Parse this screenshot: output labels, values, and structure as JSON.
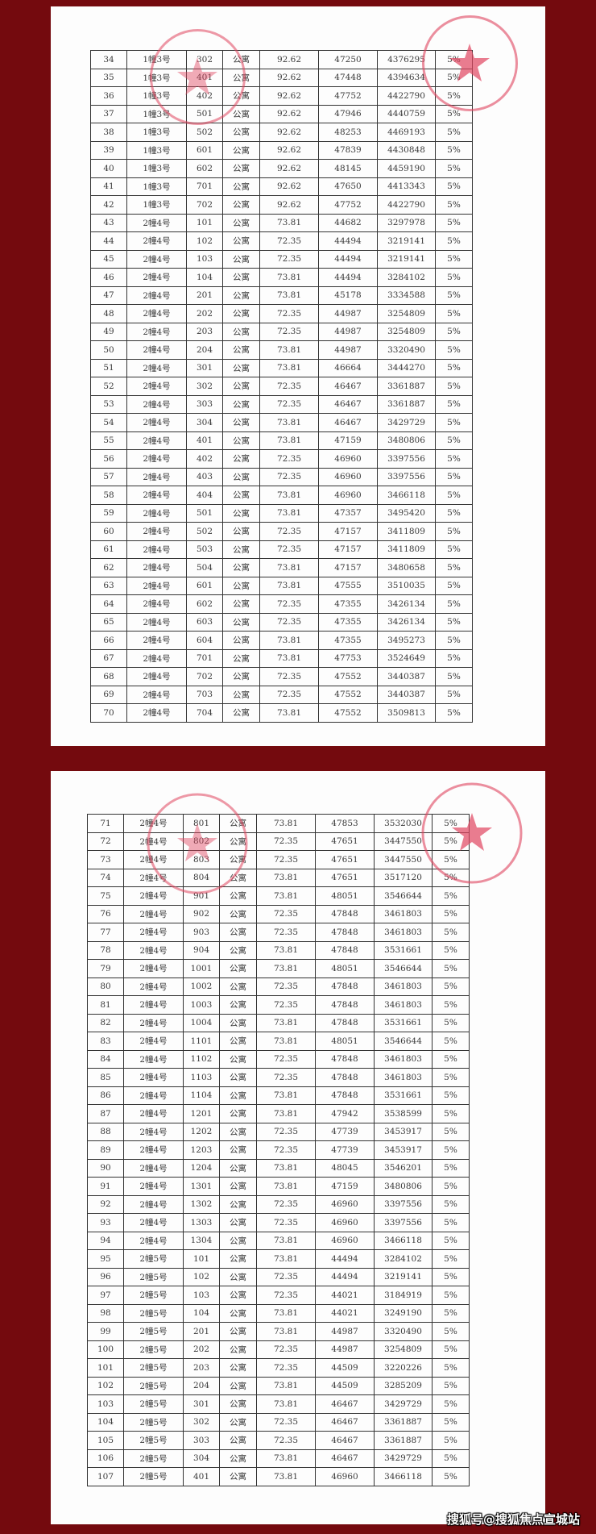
{
  "colors": {
    "background": "#740a0e",
    "stamp": "#e0455f",
    "paper": "#fdfdfd"
  },
  "watermark": "搜狐号@搜狐焦点宣城站",
  "pages": [
    {
      "rows": [
        [
          "34",
          "1幢3号",
          "302",
          "公寓",
          "92.62",
          "47250",
          "4376295",
          "5%"
        ],
        [
          "35",
          "1幢3号",
          "401",
          "公寓",
          "92.62",
          "47448",
          "4394634",
          "5%"
        ],
        [
          "36",
          "1幢3号",
          "402",
          "公寓",
          "92.62",
          "47752",
          "4422790",
          "5%"
        ],
        [
          "37",
          "1幢3号",
          "501",
          "公寓",
          "92.62",
          "47946",
          "4440759",
          "5%"
        ],
        [
          "38",
          "1幢3号",
          "502",
          "公寓",
          "92.62",
          "48253",
          "4469193",
          "5%"
        ],
        [
          "39",
          "1幢3号",
          "601",
          "公寓",
          "92.62",
          "47839",
          "4430848",
          "5%"
        ],
        [
          "40",
          "1幢3号",
          "602",
          "公寓",
          "92.62",
          "48145",
          "4459190",
          "5%"
        ],
        [
          "41",
          "1幢3号",
          "701",
          "公寓",
          "92.62",
          "47650",
          "4413343",
          "5%"
        ],
        [
          "42",
          "1幢3号",
          "702",
          "公寓",
          "92.62",
          "47752",
          "4422790",
          "5%"
        ],
        [
          "43",
          "2幢4号",
          "101",
          "公寓",
          "73.81",
          "44682",
          "3297978",
          "5%"
        ],
        [
          "44",
          "2幢4号",
          "102",
          "公寓",
          "72.35",
          "44494",
          "3219141",
          "5%"
        ],
        [
          "45",
          "2幢4号",
          "103",
          "公寓",
          "72.35",
          "44494",
          "3219141",
          "5%"
        ],
        [
          "46",
          "2幢4号",
          "104",
          "公寓",
          "73.81",
          "44494",
          "3284102",
          "5%"
        ],
        [
          "47",
          "2幢4号",
          "201",
          "公寓",
          "73.81",
          "45178",
          "3334588",
          "5%"
        ],
        [
          "48",
          "2幢4号",
          "202",
          "公寓",
          "72.35",
          "44987",
          "3254809",
          "5%"
        ],
        [
          "49",
          "2幢4号",
          "203",
          "公寓",
          "72.35",
          "44987",
          "3254809",
          "5%"
        ],
        [
          "50",
          "2幢4号",
          "204",
          "公寓",
          "73.81",
          "44987",
          "3320490",
          "5%"
        ],
        [
          "51",
          "2幢4号",
          "301",
          "公寓",
          "73.81",
          "46664",
          "3444270",
          "5%"
        ],
        [
          "52",
          "2幢4号",
          "302",
          "公寓",
          "72.35",
          "46467",
          "3361887",
          "5%"
        ],
        [
          "53",
          "2幢4号",
          "303",
          "公寓",
          "72.35",
          "46467",
          "3361887",
          "5%"
        ],
        [
          "54",
          "2幢4号",
          "304",
          "公寓",
          "73.81",
          "46467",
          "3429729",
          "5%"
        ],
        [
          "55",
          "2幢4号",
          "401",
          "公寓",
          "73.81",
          "47159",
          "3480806",
          "5%"
        ],
        [
          "56",
          "2幢4号",
          "402",
          "公寓",
          "72.35",
          "46960",
          "3397556",
          "5%"
        ],
        [
          "57",
          "2幢4号",
          "403",
          "公寓",
          "72.35",
          "46960",
          "3397556",
          "5%"
        ],
        [
          "58",
          "2幢4号",
          "404",
          "公寓",
          "73.81",
          "46960",
          "3466118",
          "5%"
        ],
        [
          "59",
          "2幢4号",
          "501",
          "公寓",
          "73.81",
          "47357",
          "3495420",
          "5%"
        ],
        [
          "60",
          "2幢4号",
          "502",
          "公寓",
          "72.35",
          "47157",
          "3411809",
          "5%"
        ],
        [
          "61",
          "2幢4号",
          "503",
          "公寓",
          "72.35",
          "47157",
          "3411809",
          "5%"
        ],
        [
          "62",
          "2幢4号",
          "504",
          "公寓",
          "73.81",
          "47157",
          "3480658",
          "5%"
        ],
        [
          "63",
          "2幢4号",
          "601",
          "公寓",
          "73.81",
          "47555",
          "3510035",
          "5%"
        ],
        [
          "64",
          "2幢4号",
          "602",
          "公寓",
          "72.35",
          "47355",
          "3426134",
          "5%"
        ],
        [
          "65",
          "2幢4号",
          "603",
          "公寓",
          "72.35",
          "47355",
          "3426134",
          "5%"
        ],
        [
          "66",
          "2幢4号",
          "604",
          "公寓",
          "73.81",
          "47355",
          "3495273",
          "5%"
        ],
        [
          "67",
          "2幢4号",
          "701",
          "公寓",
          "73.81",
          "47753",
          "3524649",
          "5%"
        ],
        [
          "68",
          "2幢4号",
          "702",
          "公寓",
          "72.35",
          "47552",
          "3440387",
          "5%"
        ],
        [
          "69",
          "2幢4号",
          "703",
          "公寓",
          "72.35",
          "47552",
          "3440387",
          "5%"
        ],
        [
          "70",
          "2幢4号",
          "704",
          "公寓",
          "73.81",
          "47552",
          "3509813",
          "5%"
        ]
      ]
    },
    {
      "rows": [
        [
          "71",
          "2幢4号",
          "801",
          "公寓",
          "73.81",
          "47853",
          "3532030",
          "5%"
        ],
        [
          "72",
          "2幢4号",
          "802",
          "公寓",
          "72.35",
          "47651",
          "3447550",
          "5%"
        ],
        [
          "73",
          "2幢4号",
          "803",
          "公寓",
          "72.35",
          "47651",
          "3447550",
          "5%"
        ],
        [
          "74",
          "2幢4号",
          "804",
          "公寓",
          "73.81",
          "47651",
          "3517120",
          "5%"
        ],
        [
          "75",
          "2幢4号",
          "901",
          "公寓",
          "73.81",
          "48051",
          "3546644",
          "5%"
        ],
        [
          "76",
          "2幢4号",
          "902",
          "公寓",
          "72.35",
          "47848",
          "3461803",
          "5%"
        ],
        [
          "77",
          "2幢4号",
          "903",
          "公寓",
          "72.35",
          "47848",
          "3461803",
          "5%"
        ],
        [
          "78",
          "2幢4号",
          "904",
          "公寓",
          "73.81",
          "47848",
          "3531661",
          "5%"
        ],
        [
          "79",
          "2幢4号",
          "1001",
          "公寓",
          "73.81",
          "48051",
          "3546644",
          "5%"
        ],
        [
          "80",
          "2幢4号",
          "1002",
          "公寓",
          "72.35",
          "47848",
          "3461803",
          "5%"
        ],
        [
          "81",
          "2幢4号",
          "1003",
          "公寓",
          "72.35",
          "47848",
          "3461803",
          "5%"
        ],
        [
          "82",
          "2幢4号",
          "1004",
          "公寓",
          "73.81",
          "47848",
          "3531661",
          "5%"
        ],
        [
          "83",
          "2幢4号",
          "1101",
          "公寓",
          "73.81",
          "48051",
          "3546644",
          "5%"
        ],
        [
          "84",
          "2幢4号",
          "1102",
          "公寓",
          "72.35",
          "47848",
          "3461803",
          "5%"
        ],
        [
          "85",
          "2幢4号",
          "1103",
          "公寓",
          "72.35",
          "47848",
          "3461803",
          "5%"
        ],
        [
          "86",
          "2幢4号",
          "1104",
          "公寓",
          "73.81",
          "47848",
          "3531661",
          "5%"
        ],
        [
          "87",
          "2幢4号",
          "1201",
          "公寓",
          "73.81",
          "47942",
          "3538599",
          "5%"
        ],
        [
          "88",
          "2幢4号",
          "1202",
          "公寓",
          "72.35",
          "47739",
          "3453917",
          "5%"
        ],
        [
          "89",
          "2幢4号",
          "1203",
          "公寓",
          "72.35",
          "47739",
          "3453917",
          "5%"
        ],
        [
          "90",
          "2幢4号",
          "1204",
          "公寓",
          "73.81",
          "48045",
          "3546201",
          "5%"
        ],
        [
          "91",
          "2幢4号",
          "1301",
          "公寓",
          "73.81",
          "47159",
          "3480806",
          "5%"
        ],
        [
          "92",
          "2幢4号",
          "1302",
          "公寓",
          "72.35",
          "46960",
          "3397556",
          "5%"
        ],
        [
          "93",
          "2幢4号",
          "1303",
          "公寓",
          "72.35",
          "46960",
          "3397556",
          "5%"
        ],
        [
          "94",
          "2幢4号",
          "1304",
          "公寓",
          "73.81",
          "46960",
          "3466118",
          "5%"
        ],
        [
          "95",
          "2幢5号",
          "101",
          "公寓",
          "73.81",
          "44494",
          "3284102",
          "5%"
        ],
        [
          "96",
          "2幢5号",
          "102",
          "公寓",
          "72.35",
          "44494",
          "3219141",
          "5%"
        ],
        [
          "97",
          "2幢5号",
          "103",
          "公寓",
          "72.35",
          "44021",
          "3184919",
          "5%"
        ],
        [
          "98",
          "2幢5号",
          "104",
          "公寓",
          "73.81",
          "44021",
          "3249190",
          "5%"
        ],
        [
          "99",
          "2幢5号",
          "201",
          "公寓",
          "73.81",
          "44987",
          "3320490",
          "5%"
        ],
        [
          "100",
          "2幢5号",
          "202",
          "公寓",
          "72.35",
          "44987",
          "3254809",
          "5%"
        ],
        [
          "101",
          "2幢5号",
          "203",
          "公寓",
          "72.35",
          "44509",
          "3220226",
          "5%"
        ],
        [
          "102",
          "2幢5号",
          "204",
          "公寓",
          "73.81",
          "44509",
          "3285209",
          "5%"
        ],
        [
          "103",
          "2幢5号",
          "301",
          "公寓",
          "73.81",
          "46467",
          "3429729",
          "5%"
        ],
        [
          "104",
          "2幢5号",
          "302",
          "公寓",
          "72.35",
          "46467",
          "3361887",
          "5%"
        ],
        [
          "105",
          "2幢5号",
          "303",
          "公寓",
          "72.35",
          "46467",
          "3361887",
          "5%"
        ],
        [
          "106",
          "2幢5号",
          "304",
          "公寓",
          "73.81",
          "46467",
          "3429729",
          "5%"
        ],
        [
          "107",
          "2幢5号",
          "401",
          "公寓",
          "73.81",
          "46960",
          "3466118",
          "5%"
        ]
      ]
    }
  ]
}
